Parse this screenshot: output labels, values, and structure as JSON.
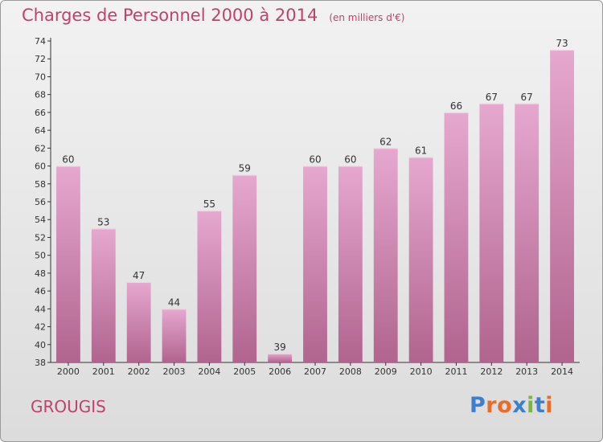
{
  "header": {
    "title": "Charges de Personnel 2000 à 2014",
    "subtitle": "(en milliers d'€)"
  },
  "footer": {
    "place": "GROUGIS",
    "logo": "Proxiti"
  },
  "colors": {
    "title": "#c0426c",
    "bar_light": "#e6a8cf",
    "bar_dark": "#b0648e",
    "logo_letters": [
      "#3c7fd1",
      "#e86c2a",
      "#e86c2a",
      "#3c7fd1",
      "#7ab53e",
      "#3c7fd1",
      "#e86c2a"
    ]
  },
  "chart_data": {
    "type": "bar",
    "title": "Charges de Personnel 2000 à 2014",
    "subtitle": "(en milliers d'€)",
    "categories": [
      "2000",
      "2001",
      "2002",
      "2003",
      "2004",
      "2005",
      "2006",
      "2007",
      "2008",
      "2009",
      "2010",
      "2011",
      "2012",
      "2013",
      "2014"
    ],
    "values": [
      60,
      53,
      47,
      44,
      55,
      59,
      39,
      60,
      60,
      62,
      61,
      66,
      67,
      67,
      73
    ],
    "ylim": [
      38,
      74
    ],
    "yticks": [
      38,
      40,
      42,
      44,
      46,
      48,
      50,
      52,
      54,
      56,
      58,
      60,
      62,
      64,
      66,
      68,
      70,
      72,
      74
    ],
    "grid": false,
    "data_labels": true
  }
}
